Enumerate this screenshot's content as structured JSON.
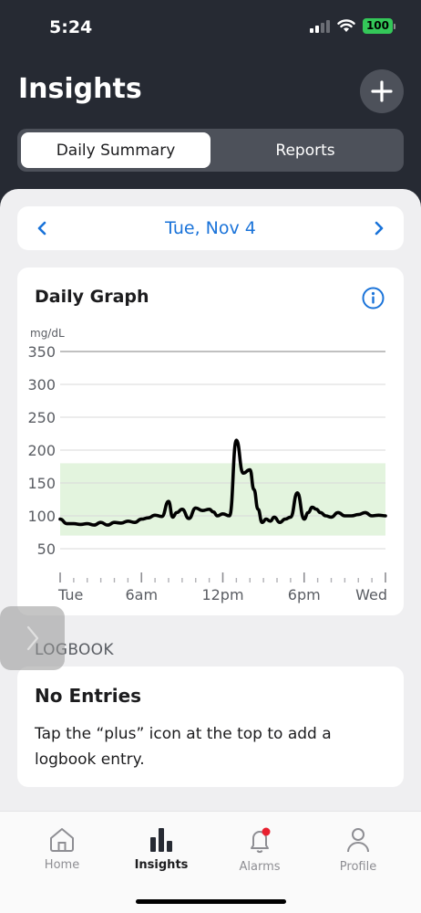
{
  "status_bar": {
    "time": "5:24",
    "battery": "100"
  },
  "header": {
    "title": "Insights",
    "add_icon": "plus-icon"
  },
  "segments": {
    "daily": "Daily Summary",
    "reports": "Reports",
    "selected": "daily"
  },
  "date_nav": {
    "date": "Tue, Nov 4"
  },
  "graph": {
    "title": "Daily Graph",
    "unit": "mg/dL"
  },
  "chart_data": {
    "type": "line",
    "title": "Daily Graph",
    "ylabel": "mg/dL",
    "ylim": [
      50,
      350
    ],
    "yticks": [
      350,
      300,
      250,
      200,
      150,
      100,
      50
    ],
    "xlim": [
      0,
      24
    ],
    "xtick_labels": [
      "Tue",
      "6am",
      "12pm",
      "6pm",
      "Wed"
    ],
    "xtick_hours": [
      0,
      6,
      12,
      18,
      24
    ],
    "target_range": [
      70,
      180
    ],
    "colors": {
      "line": "#000000",
      "target_range": "#e3f4de",
      "grid": "#d9d9d9"
    },
    "series": [
      {
        "x": [
          0,
          0.5,
          1,
          1.5,
          2,
          2.5,
          3,
          3.5,
          4,
          4.5,
          5,
          5.5,
          6,
          6.5,
          7,
          7.5,
          8,
          8.3,
          8.6,
          9,
          9.5,
          10,
          10.5,
          11,
          11.3,
          11.6,
          12,
          12.5,
          13,
          13.5,
          14,
          14.3,
          14.6,
          14.9,
          15.2,
          15.5,
          15.8,
          16.2,
          16.6,
          17,
          17.5,
          18,
          18.3,
          18.6,
          18.9,
          19.2,
          19.6,
          20,
          20.5,
          21,
          21.5,
          22,
          22.5,
          23,
          23.5,
          24
        ],
        "y": [
          95,
          88,
          88,
          87,
          88,
          86,
          90,
          86,
          90,
          89,
          92,
          90,
          95,
          97,
          101,
          99,
          122,
          98,
          105,
          110,
          96,
          112,
          108,
          110,
          106,
          100,
          103,
          100,
          215,
          165,
          170,
          140,
          110,
          90,
          95,
          92,
          98,
          90,
          95,
          98,
          135,
          95,
          105,
          113,
          110,
          105,
          100,
          98,
          105,
          100,
          100,
          102,
          105,
          100,
          101,
          100
        ]
      }
    ]
  },
  "logbook": {
    "section_label": "LOGBOOK",
    "title": "No Entries",
    "text": "Tap the “plus” icon at the top to add a logbook entry."
  },
  "tabs": [
    {
      "label": "Home",
      "icon": "home-icon"
    },
    {
      "label": "Insights",
      "icon": "bar-chart-icon"
    },
    {
      "label": "Alarms",
      "icon": "bell-icon"
    },
    {
      "label": "Profile",
      "icon": "person-icon"
    }
  ],
  "active_tab": "Insights"
}
